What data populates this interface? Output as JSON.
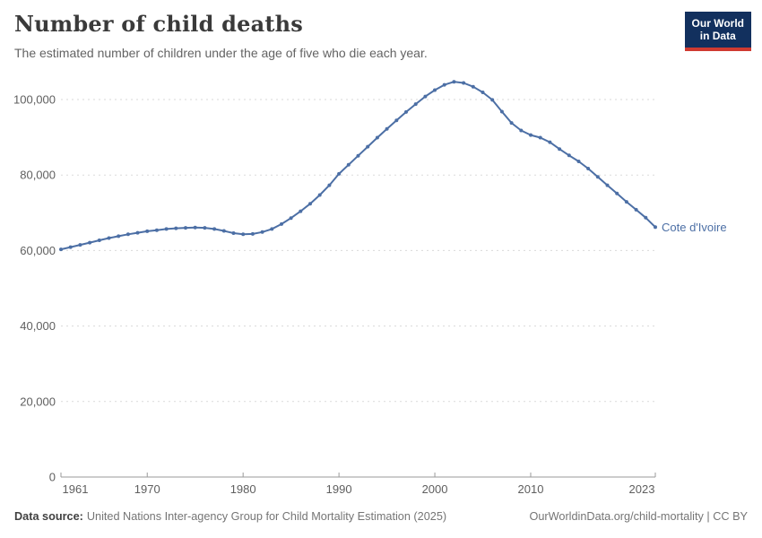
{
  "header": {
    "title": "Number of child deaths",
    "subtitle": "The estimated number of children under the age of five who die each year.",
    "logo": {
      "line1": "Our World",
      "line2": "in Data"
    }
  },
  "chart_data": {
    "type": "line",
    "title": "Number of child deaths",
    "xlabel": "",
    "ylabel": "",
    "x_start": 1961,
    "x_end": 2023,
    "ylim": [
      0,
      100000
    ],
    "grid": "horizontal-dashed",
    "legend_position": "end-of-line-label",
    "x_ticks": [
      {
        "year": 1961,
        "label": "1961"
      },
      {
        "year": 1970,
        "label": "1970"
      },
      {
        "year": 1980,
        "label": "1980"
      },
      {
        "year": 1990,
        "label": "1990"
      },
      {
        "year": 2000,
        "label": "2000"
      },
      {
        "year": 2010,
        "label": "2010"
      },
      {
        "year": 2023,
        "label": "2023"
      }
    ],
    "y_ticks": [
      {
        "value": 0,
        "label": "0"
      },
      {
        "value": 20000,
        "label": "20,000"
      },
      {
        "value": 40000,
        "label": "40,000"
      },
      {
        "value": 60000,
        "label": "60,000"
      },
      {
        "value": 80000,
        "label": "80,000"
      },
      {
        "value": 100000,
        "label": "100,000"
      }
    ],
    "series": [
      {
        "name": "Cote d'Ivoire",
        "color": "#4c6fa5",
        "values": [
          60300,
          60900,
          61500,
          62100,
          62700,
          63300,
          63800,
          64300,
          64700,
          65100,
          65400,
          65700,
          65900,
          66000,
          66100,
          66000,
          65700,
          65200,
          64600,
          64300,
          64400,
          64900,
          65700,
          67000,
          68600,
          70400,
          72400,
          74700,
          77300,
          80300,
          82700,
          85100,
          87500,
          89900,
          92200,
          94500,
          96700,
          98800,
          100800,
          102500,
          103900,
          104700,
          104400,
          103400,
          101900,
          99900,
          96800,
          93800,
          91800,
          90600,
          89900,
          88700,
          86900,
          85200,
          83600,
          81700,
          79500,
          77300,
          75100,
          72900,
          70800,
          68700,
          66200
        ]
      }
    ],
    "end_label": "Cote d'Ivoire"
  },
  "footer": {
    "source_label": "Data source:",
    "source_text": "United Nations Inter-agency Group for Child Mortality Estimation (2025)",
    "right_text": "OurWorldinData.org/child-mortality | CC BY"
  }
}
